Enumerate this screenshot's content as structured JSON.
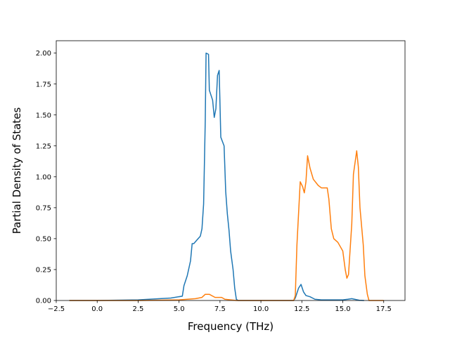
{
  "chart_data": {
    "type": "line",
    "xlabel": "Frequency (THz)",
    "ylabel": "Partial Density of States",
    "xlim": [
      -2.5,
      18.8
    ],
    "ylim": [
      0,
      2.1
    ],
    "xticks": [
      -2.5,
      0.0,
      2.5,
      5.0,
      7.5,
      10.0,
      12.5,
      15.0,
      17.5
    ],
    "xtick_labels": [
      "−2.5",
      "0.0",
      "2.5",
      "5.0",
      "7.5",
      "10.0",
      "12.5",
      "15.0",
      "17.5"
    ],
    "yticks": [
      0.0,
      0.25,
      0.5,
      0.75,
      1.0,
      1.25,
      1.5,
      1.75,
      2.0
    ],
    "ytick_labels": [
      "0.00",
      "0.25",
      "0.50",
      "0.75",
      "1.00",
      "1.25",
      "1.50",
      "1.75",
      "2.00"
    ],
    "grid": false,
    "series": [
      {
        "color": "#1f77b4",
        "points": [
          [
            -1.7,
            0.0
          ],
          [
            0.0,
            0.0
          ],
          [
            2.5,
            0.005
          ],
          [
            4.5,
            0.02
          ],
          [
            5.2,
            0.035
          ],
          [
            5.3,
            0.12
          ],
          [
            5.5,
            0.2
          ],
          [
            5.7,
            0.32
          ],
          [
            5.8,
            0.46
          ],
          [
            5.9,
            0.46
          ],
          [
            6.1,
            0.49
          ],
          [
            6.3,
            0.52
          ],
          [
            6.4,
            0.58
          ],
          [
            6.5,
            0.78
          ],
          [
            6.6,
            1.45
          ],
          [
            6.65,
            2.0
          ],
          [
            6.8,
            1.99
          ],
          [
            6.85,
            1.7
          ],
          [
            7.05,
            1.62
          ],
          [
            7.15,
            1.48
          ],
          [
            7.25,
            1.55
          ],
          [
            7.35,
            1.82
          ],
          [
            7.45,
            1.86
          ],
          [
            7.55,
            1.32
          ],
          [
            7.75,
            1.25
          ],
          [
            7.85,
            0.88
          ],
          [
            7.95,
            0.7
          ],
          [
            8.05,
            0.57
          ],
          [
            8.15,
            0.4
          ],
          [
            8.3,
            0.25
          ],
          [
            8.4,
            0.1
          ],
          [
            8.5,
            0.01
          ],
          [
            8.6,
            0.0
          ],
          [
            12.0,
            0.0
          ],
          [
            12.1,
            0.02
          ],
          [
            12.3,
            0.1
          ],
          [
            12.45,
            0.13
          ],
          [
            12.6,
            0.07
          ],
          [
            12.75,
            0.04
          ],
          [
            13.0,
            0.03
          ],
          [
            13.3,
            0.01
          ],
          [
            13.7,
            0.005
          ],
          [
            15.0,
            0.005
          ],
          [
            15.3,
            0.01
          ],
          [
            15.55,
            0.015
          ],
          [
            15.8,
            0.008
          ],
          [
            16.0,
            0.002
          ],
          [
            16.3,
            0.0
          ]
        ]
      },
      {
        "color": "#ff7f0e",
        "points": [
          [
            -1.7,
            0.0
          ],
          [
            2.5,
            0.0
          ],
          [
            5.0,
            0.005
          ],
          [
            6.0,
            0.015
          ],
          [
            6.4,
            0.025
          ],
          [
            6.6,
            0.05
          ],
          [
            6.85,
            0.05
          ],
          [
            7.2,
            0.025
          ],
          [
            7.6,
            0.025
          ],
          [
            7.8,
            0.01
          ],
          [
            8.5,
            0.0
          ],
          [
            12.0,
            0.0
          ],
          [
            12.1,
            0.04
          ],
          [
            12.2,
            0.45
          ],
          [
            12.4,
            0.96
          ],
          [
            12.55,
            0.92
          ],
          [
            12.65,
            0.87
          ],
          [
            12.75,
            0.96
          ],
          [
            12.85,
            1.17
          ],
          [
            13.0,
            1.07
          ],
          [
            13.2,
            0.98
          ],
          [
            13.5,
            0.93
          ],
          [
            13.7,
            0.91
          ],
          [
            14.05,
            0.91
          ],
          [
            14.15,
            0.82
          ],
          [
            14.3,
            0.58
          ],
          [
            14.45,
            0.5
          ],
          [
            14.7,
            0.47
          ],
          [
            15.0,
            0.4
          ],
          [
            15.15,
            0.25
          ],
          [
            15.25,
            0.18
          ],
          [
            15.35,
            0.21
          ],
          [
            15.55,
            0.62
          ],
          [
            15.65,
            1.02
          ],
          [
            15.85,
            1.21
          ],
          [
            15.95,
            1.08
          ],
          [
            16.05,
            0.75
          ],
          [
            16.25,
            0.45
          ],
          [
            16.35,
            0.2
          ],
          [
            16.5,
            0.05
          ],
          [
            16.6,
            0.0
          ],
          [
            17.5,
            0.0
          ]
        ]
      }
    ]
  }
}
